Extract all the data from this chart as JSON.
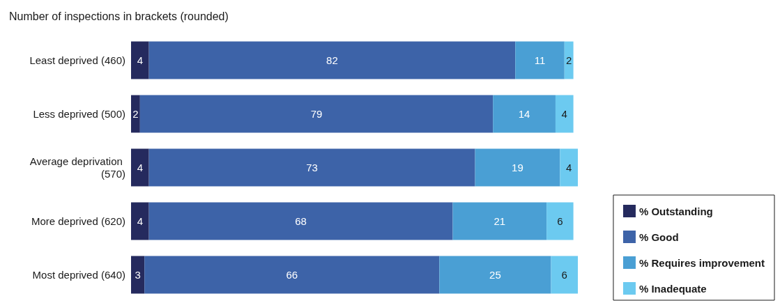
{
  "chart_data": {
    "type": "bar",
    "orientation": "horizontal",
    "stacked": true,
    "data_labels": true,
    "legend": "bottom right",
    "title": "Number of inspections in brackets (rounded)",
    "categories": [
      "Least deprived (460)",
      "Less deprived (500)",
      "Average deprivation (570)",
      "More deprived (620)",
      "Most deprived (640)"
    ],
    "series": [
      {
        "name": "% Outstanding",
        "color": "#252a5e",
        "values": [
          4,
          2,
          4,
          4,
          3
        ]
      },
      {
        "name": "% Good",
        "color": "#3d63a8",
        "values": [
          82,
          79,
          73,
          68,
          66
        ]
      },
      {
        "name": "% Requires improvement",
        "color": "#4a9fd4",
        "values": [
          11,
          14,
          19,
          21,
          25
        ]
      },
      {
        "name": "% Inadequate",
        "color": "#6ccaf0",
        "values": [
          2,
          4,
          4,
          6,
          6
        ]
      }
    ]
  }
}
